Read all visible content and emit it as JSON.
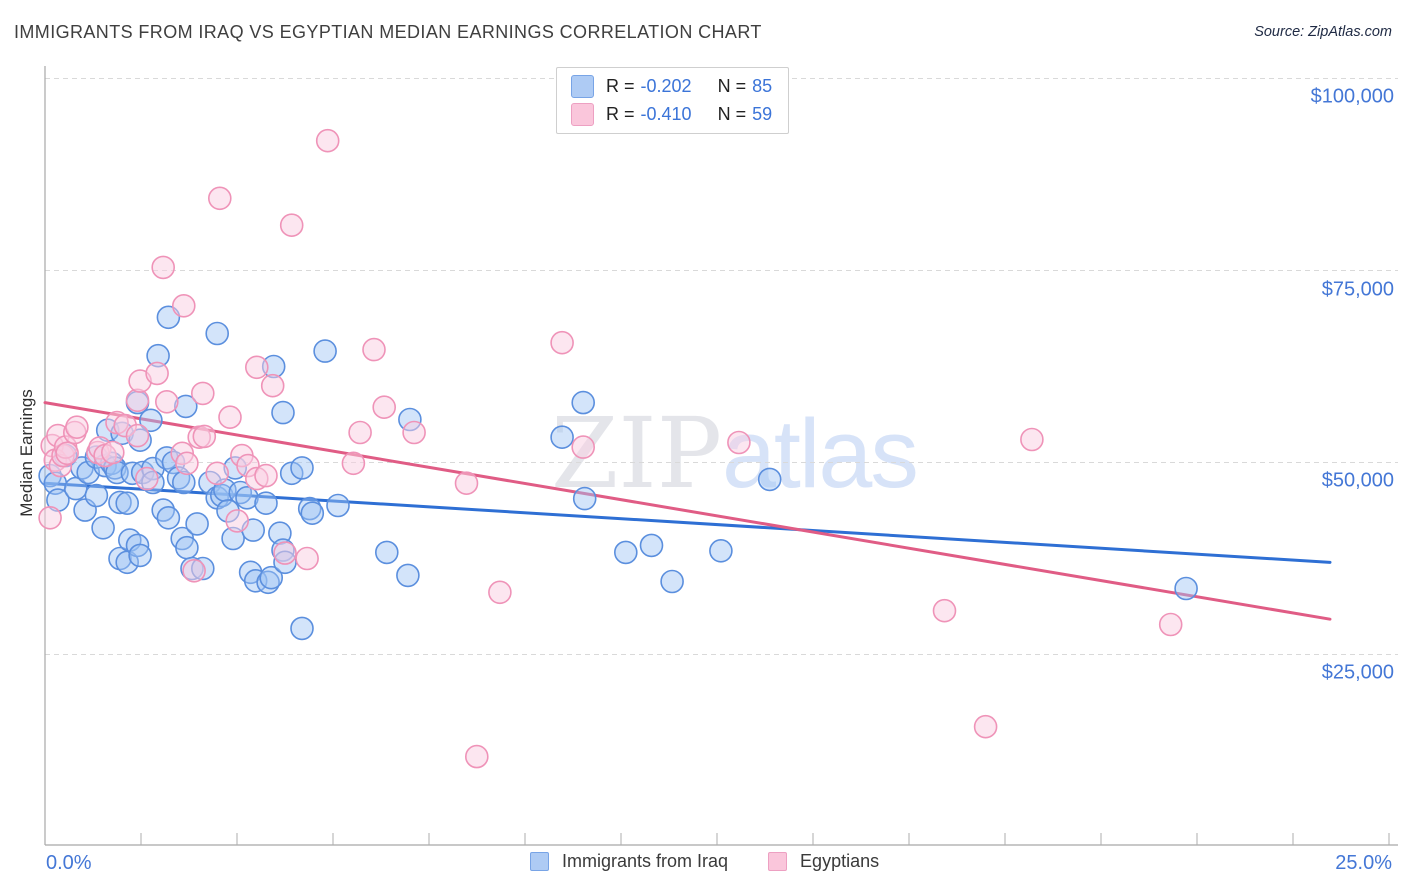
{
  "title": "IMMIGRANTS FROM IRAQ VS EGYPTIAN MEDIAN EARNINGS CORRELATION CHART",
  "source": "Source: ZipAtlas.com",
  "watermark": {
    "zip": "ZIP",
    "atlas": "atlas"
  },
  "y_axis": {
    "title": "Median Earnings",
    "tick_labels": [
      "$100,000",
      "$75,000",
      "$50,000",
      "$25,000"
    ],
    "tick_values": [
      100000,
      75000,
      50000,
      25000
    ]
  },
  "x_axis": {
    "left_label": "0.0%",
    "right_label": "25.0%",
    "min_pct": 0,
    "max_pct": 25
  },
  "stats_legend": {
    "rows": [
      {
        "series": "blue",
        "r_label": "R =",
        "r_value": "-0.202",
        "n_label": "N =",
        "n_value": "85"
      },
      {
        "series": "pink",
        "r_label": "R =",
        "r_value": "-0.410",
        "n_label": "N =",
        "n_value": "59"
      }
    ]
  },
  "bottom_legend": {
    "items": [
      {
        "label": "Immigrants from Iraq"
      },
      {
        "label": "Egyptians"
      }
    ]
  },
  "colors": {
    "blue_stroke": "#5b8fde",
    "blue_fill": "rgba(158,196,245,0.45)",
    "blue_line": "#2e6fd4",
    "pink_stroke": "#ef93b8",
    "pink_fill": "rgba(250,205,226,0.5)",
    "pink_line": "#e05c85",
    "gridline": "#d9d9d9",
    "axis": "#a8a8a8",
    "tick": "#adadad",
    "label_blue": "#4477d6"
  },
  "chart_data": {
    "type": "scatter",
    "xlabel_unit": "percent immigrants",
    "ylabel_unit": "median earnings USD",
    "x_range_pct": [
      0,
      25
    ],
    "y_gridlines": [
      100000,
      75000,
      50000,
      25000
    ],
    "series": [
      {
        "name": "Immigrants from Iraq",
        "R": -0.202,
        "N": 85,
        "trend": {
          "x_pct": [
            0,
            25
          ],
          "y": [
            47300,
            37000
          ]
        },
        "points": [
          [
            0.1,
            48300
          ],
          [
            0.2,
            47300
          ],
          [
            0.25,
            45100
          ],
          [
            0.4,
            50900
          ],
          [
            0.6,
            46600
          ],
          [
            0.72,
            49300
          ],
          [
            0.78,
            43800
          ],
          [
            0.84,
            48700
          ],
          [
            1.0,
            50700
          ],
          [
            1.0,
            45700
          ],
          [
            1.13,
            41500
          ],
          [
            1.17,
            49600
          ],
          [
            1.22,
            54200
          ],
          [
            1.3,
            49900
          ],
          [
            1.36,
            49300
          ],
          [
            1.4,
            48700
          ],
          [
            1.46,
            44800
          ],
          [
            1.46,
            37500
          ],
          [
            1.5,
            53800
          ],
          [
            1.6,
            44700
          ],
          [
            1.6,
            37000
          ],
          [
            1.65,
            39900
          ],
          [
            1.7,
            48600
          ],
          [
            1.8,
            57800
          ],
          [
            1.8,
            39200
          ],
          [
            1.85,
            52900
          ],
          [
            1.85,
            37900
          ],
          [
            1.9,
            48700
          ],
          [
            2.06,
            55500
          ],
          [
            2.1,
            49200
          ],
          [
            2.1,
            47400
          ],
          [
            2.2,
            63900
          ],
          [
            2.3,
            43800
          ],
          [
            2.37,
            50600
          ],
          [
            2.4,
            68900
          ],
          [
            2.4,
            42800
          ],
          [
            2.5,
            50000
          ],
          [
            2.6,
            48000
          ],
          [
            2.67,
            40100
          ],
          [
            2.7,
            47400
          ],
          [
            2.74,
            57300
          ],
          [
            2.76,
            38900
          ],
          [
            2.86,
            36200
          ],
          [
            2.96,
            42000
          ],
          [
            3.07,
            36200
          ],
          [
            3.21,
            47400
          ],
          [
            3.35,
            66800
          ],
          [
            3.35,
            45400
          ],
          [
            3.44,
            45700
          ],
          [
            3.5,
            46400
          ],
          [
            3.56,
            43700
          ],
          [
            3.66,
            40100
          ],
          [
            3.7,
            49300
          ],
          [
            3.8,
            46100
          ],
          [
            3.93,
            45400
          ],
          [
            4.0,
            35700
          ],
          [
            4.05,
            41200
          ],
          [
            4.1,
            34600
          ],
          [
            4.3,
            44700
          ],
          [
            4.34,
            34400
          ],
          [
            4.4,
            35000
          ],
          [
            4.45,
            62500
          ],
          [
            4.57,
            40800
          ],
          [
            4.63,
            56500
          ],
          [
            4.63,
            38600
          ],
          [
            4.67,
            37000
          ],
          [
            4.8,
            48600
          ],
          [
            5.0,
            49300
          ],
          [
            5.0,
            28400
          ],
          [
            5.15,
            44000
          ],
          [
            5.2,
            43400
          ],
          [
            5.45,
            64500
          ],
          [
            5.7,
            44400
          ],
          [
            6.65,
            38300
          ],
          [
            7.06,
            35300
          ],
          [
            7.1,
            55600
          ],
          [
            10.06,
            53300
          ],
          [
            10.47,
            57800
          ],
          [
            10.5,
            45300
          ],
          [
            11.3,
            38300
          ],
          [
            11.8,
            39200
          ],
          [
            12.2,
            34500
          ],
          [
            13.15,
            38500
          ],
          [
            14.1,
            47800
          ],
          [
            22.2,
            33600
          ]
        ]
      },
      {
        "name": "Egyptians",
        "R": -0.41,
        "N": 59,
        "trend": {
          "x_pct": [
            0,
            25
          ],
          "y": [
            57800,
            29600
          ]
        },
        "points": [
          [
            0.1,
            42800
          ],
          [
            0.14,
            52200
          ],
          [
            0.2,
            50300
          ],
          [
            0.25,
            53500
          ],
          [
            0.3,
            49600
          ],
          [
            0.35,
            50900
          ],
          [
            0.4,
            52000
          ],
          [
            0.43,
            51200
          ],
          [
            0.58,
            53900
          ],
          [
            0.62,
            54600
          ],
          [
            1.03,
            51300
          ],
          [
            1.07,
            51900
          ],
          [
            1.17,
            50900
          ],
          [
            1.32,
            51300
          ],
          [
            1.4,
            55200
          ],
          [
            1.56,
            54800
          ],
          [
            1.8,
            58100
          ],
          [
            1.8,
            53500
          ],
          [
            1.85,
            60600
          ],
          [
            1.98,
            47900
          ],
          [
            2.18,
            61600
          ],
          [
            2.3,
            75400
          ],
          [
            2.37,
            57900
          ],
          [
            2.67,
            51200
          ],
          [
            2.7,
            70400
          ],
          [
            2.76,
            49900
          ],
          [
            2.9,
            35900
          ],
          [
            3.0,
            53300
          ],
          [
            3.07,
            59000
          ],
          [
            3.1,
            53400
          ],
          [
            3.35,
            48600
          ],
          [
            3.4,
            84400
          ],
          [
            3.6,
            55900
          ],
          [
            3.74,
            42400
          ],
          [
            3.83,
            50900
          ],
          [
            3.95,
            49600
          ],
          [
            4.12,
            62400
          ],
          [
            4.12,
            47900
          ],
          [
            4.3,
            48300
          ],
          [
            4.43,
            60000
          ],
          [
            4.67,
            38200
          ],
          [
            4.8,
            80900
          ],
          [
            5.1,
            37500
          ],
          [
            5.5,
            91900
          ],
          [
            6.0,
            49900
          ],
          [
            6.13,
            53900
          ],
          [
            6.4,
            64700
          ],
          [
            6.6,
            57200
          ],
          [
            7.18,
            53900
          ],
          [
            8.2,
            47300
          ],
          [
            8.4,
            11700
          ],
          [
            8.85,
            33100
          ],
          [
            10.06,
            65600
          ],
          [
            10.47,
            52000
          ],
          [
            13.5,
            52600
          ],
          [
            17.5,
            30700
          ],
          [
            18.3,
            15600
          ],
          [
            19.2,
            53000
          ],
          [
            21.9,
            28900
          ]
        ]
      }
    ]
  }
}
